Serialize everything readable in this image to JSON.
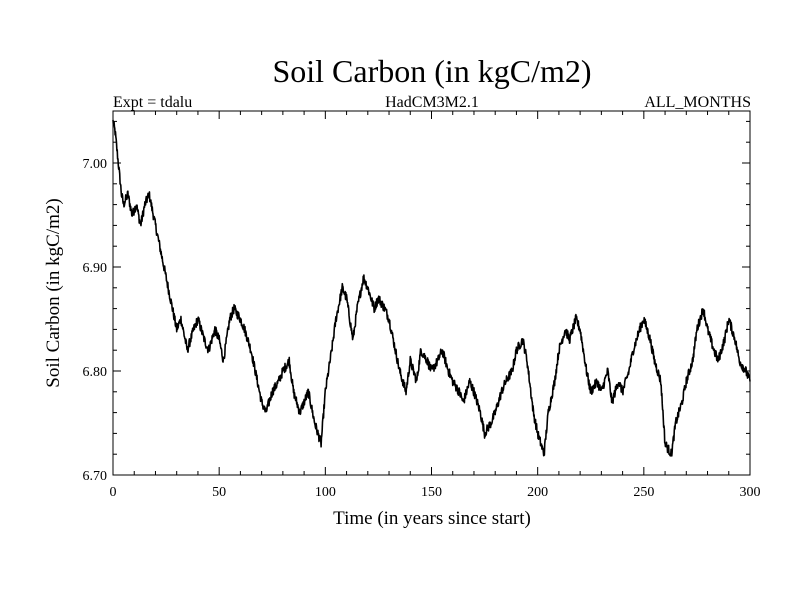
{
  "chart_data": {
    "type": "line",
    "title": "Soil Carbon (in kgC/m2)",
    "subtitle_left": "Expt = tdalu",
    "subtitle_center": "HadCM3M2.1",
    "subtitle_right": "ALL_MONTHS",
    "xlabel": "Time (in years since start)",
    "ylabel": "Soil Carbon (in kgC/m2)",
    "xlim": [
      0,
      300
    ],
    "ylim": [
      6.7,
      7.05
    ],
    "xticks": [
      0,
      50,
      100,
      150,
      200,
      250,
      300
    ],
    "xtick_labels": [
      "0",
      "50",
      "100",
      "150",
      "200",
      "250",
      "300"
    ],
    "yticks": [
      6.7,
      6.8,
      6.9,
      7.0
    ],
    "ytick_labels": [
      "6.70",
      "6.80",
      "6.90",
      "7.00"
    ],
    "series": [
      {
        "name": "Soil Carbon",
        "color": "#000000",
        "x": [
          0,
          1,
          2,
          3,
          4,
          5,
          7,
          9,
          11,
          13,
          15,
          17,
          18,
          20,
          22,
          24,
          26,
          28,
          30,
          32,
          35,
          38,
          40,
          43,
          45,
          48,
          50,
          52,
          55,
          57,
          60,
          62,
          65,
          67,
          70,
          72,
          75,
          78,
          80,
          83,
          85,
          88,
          90,
          92,
          95,
          98,
          100,
          103,
          105,
          108,
          110,
          113,
          115,
          118,
          120,
          123,
          125,
          128,
          130,
          133,
          135,
          138,
          140,
          143,
          145,
          148,
          150,
          153,
          155,
          158,
          160,
          163,
          165,
          168,
          170,
          173,
          175,
          178,
          180,
          183,
          185,
          188,
          190,
          193,
          195,
          198,
          200,
          203,
          205,
          208,
          210,
          213,
          215,
          218,
          220,
          223,
          225,
          228,
          230,
          233,
          235,
          238,
          240,
          243,
          245,
          248,
          250,
          253,
          255,
          258,
          260,
          263,
          265,
          268,
          270,
          273,
          275,
          278,
          280,
          283,
          285,
          288,
          290,
          293,
          295,
          298,
          300
        ],
        "y": [
          7.04,
          7.03,
          7.01,
          6.99,
          6.97,
          6.96,
          6.97,
          6.95,
          6.96,
          6.94,
          6.96,
          6.97,
          6.96,
          6.94,
          6.92,
          6.9,
          6.88,
          6.86,
          6.84,
          6.85,
          6.82,
          6.84,
          6.85,
          6.83,
          6.82,
          6.84,
          6.83,
          6.81,
          6.85,
          6.86,
          6.85,
          6.84,
          6.82,
          6.8,
          6.77,
          6.76,
          6.78,
          6.79,
          6.8,
          6.81,
          6.78,
          6.76,
          6.77,
          6.78,
          6.75,
          6.73,
          6.78,
          6.82,
          6.85,
          6.88,
          6.87,
          6.83,
          6.86,
          6.89,
          6.88,
          6.86,
          6.87,
          6.86,
          6.85,
          6.82,
          6.8,
          6.78,
          6.81,
          6.79,
          6.82,
          6.81,
          6.8,
          6.81,
          6.82,
          6.8,
          6.79,
          6.78,
          6.77,
          6.79,
          6.78,
          6.76,
          6.74,
          6.75,
          6.76,
          6.78,
          6.79,
          6.8,
          6.82,
          6.83,
          6.81,
          6.76,
          6.74,
          6.72,
          6.76,
          6.79,
          6.82,
          6.84,
          6.83,
          6.85,
          6.84,
          6.8,
          6.78,
          6.79,
          6.78,
          6.8,
          6.77,
          6.79,
          6.78,
          6.8,
          6.82,
          6.84,
          6.85,
          6.83,
          6.81,
          6.79,
          6.73,
          6.72,
          6.75,
          6.77,
          6.79,
          6.81,
          6.84,
          6.86,
          6.84,
          6.82,
          6.81,
          6.83,
          6.85,
          6.83,
          6.81,
          6.8,
          6.79
        ]
      }
    ]
  }
}
